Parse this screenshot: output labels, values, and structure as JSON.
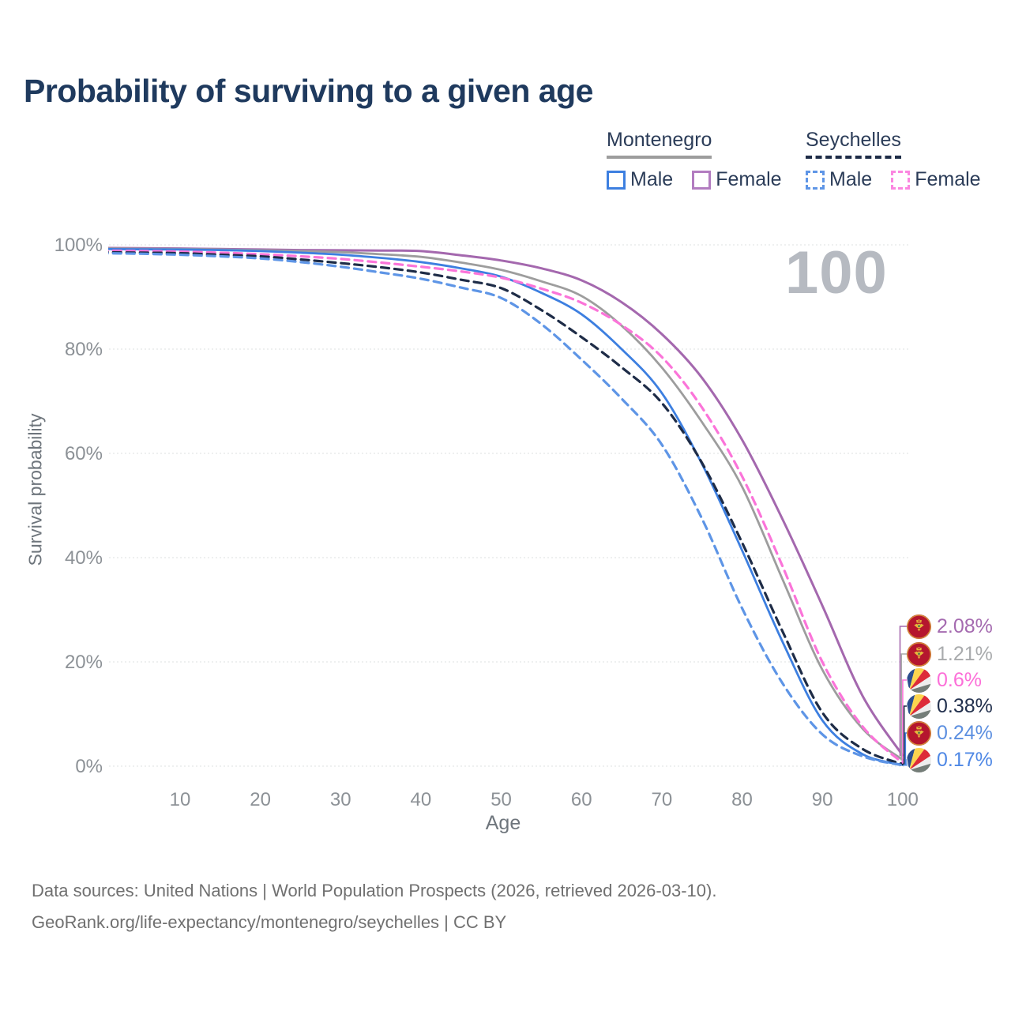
{
  "title": "Probability of surviving to a given age",
  "watermark_age": "100",
  "legend": {
    "groups": [
      {
        "name": "Montenegro",
        "line_style": "solid",
        "underline_color": "#9d9d9d"
      },
      {
        "name": "Seychelles",
        "line_style": "dashed",
        "underline_color": "#1e2c47"
      }
    ],
    "items": [
      {
        "label": "Male",
        "color": "#3d7fe0",
        "dashed": false
      },
      {
        "label": "Female",
        "color": "#b27cc0",
        "dashed": false
      },
      {
        "label": "Male",
        "color": "#5e95e6",
        "dashed": true
      },
      {
        "label": "Female",
        "color": "#fb87e0",
        "dashed": true
      }
    ]
  },
  "axes": {
    "xlabel": "Age",
    "ylabel": "Survival probability",
    "x_ticks": [
      10,
      20,
      30,
      40,
      50,
      60,
      70,
      80,
      90,
      100
    ],
    "y_ticks": [
      0,
      20,
      40,
      60,
      80,
      100
    ],
    "y_tick_suffix": "%"
  },
  "chart_data": {
    "type": "line",
    "title": "Probability of surviving to a given age",
    "xlabel": "Age",
    "ylabel": "Survival probability",
    "xlim": [
      0,
      100
    ],
    "ylim": [
      0,
      100
    ],
    "grid": true,
    "legend_position": "top-right",
    "x": [
      0,
      5,
      10,
      15,
      20,
      25,
      30,
      35,
      40,
      45,
      50,
      55,
      60,
      65,
      70,
      75,
      80,
      85,
      90,
      95,
      100
    ],
    "series": [
      {
        "name": "Montenegro Female",
        "country": "Montenegro",
        "sex": "Female",
        "color": "#a468ae",
        "dash": false,
        "width": 3,
        "values": [
          99.4,
          99.35,
          99.3,
          99.2,
          99.1,
          99.0,
          98.95,
          98.9,
          98.8,
          98.0,
          97.0,
          95.5,
          93.2,
          89.0,
          82.9,
          74.5,
          62.6,
          47.5,
          30.8,
          13.5,
          2.08
        ]
      },
      {
        "name": "Montenegro Total",
        "country": "Montenegro",
        "sex": "Both",
        "color": "#9d9d9d",
        "dash": false,
        "width": 2.8,
        "values": [
          99.3,
          99.25,
          99.2,
          99.1,
          98.95,
          98.8,
          98.6,
          98.2,
          97.7,
          96.6,
          95.2,
          93.0,
          90.2,
          84.5,
          76.5,
          66.0,
          53.6,
          36.0,
          18.5,
          7.2,
          1.21
        ]
      },
      {
        "name": "Montenegro Male",
        "country": "Montenegro",
        "sex": "Male",
        "color": "#3d7fe0",
        "dash": false,
        "width": 2.8,
        "values": [
          99.2,
          99.15,
          99.1,
          99.0,
          98.8,
          98.5,
          98.1,
          97.5,
          96.7,
          95.5,
          93.9,
          90.8,
          86.7,
          80.0,
          71.6,
          58.0,
          41.4,
          24.0,
          8.8,
          2.3,
          0.24
        ]
      },
      {
        "name": "Seychelles Female",
        "country": "Seychelles",
        "sex": "Female",
        "color": "#fb74d9",
        "dash": true,
        "width": 3.2,
        "values": [
          98.9,
          98.8,
          98.7,
          98.5,
          98.2,
          97.8,
          97.3,
          96.6,
          95.8,
          94.9,
          93.7,
          91.6,
          88.9,
          84.6,
          78.5,
          68.8,
          55.6,
          38.5,
          20.0,
          7.6,
          0.6
        ]
      },
      {
        "name": "Seychelles Total",
        "country": "Seychelles",
        "sex": "Both",
        "color": "#1e2c47",
        "dash": true,
        "width": 3.2,
        "values": [
          98.6,
          98.5,
          98.4,
          98.1,
          97.8,
          97.2,
          96.5,
          95.7,
          94.7,
          93.3,
          91.7,
          87.5,
          82.3,
          76.5,
          69.7,
          58.2,
          42.9,
          26.0,
          10.3,
          3.3,
          0.38
        ]
      },
      {
        "name": "Seychelles Male",
        "country": "Seychelles",
        "sex": "Male",
        "color": "#5e95e6",
        "dash": true,
        "width": 3.2,
        "values": [
          98.4,
          98.3,
          98.1,
          97.8,
          97.4,
          96.7,
          95.8,
          94.7,
          93.5,
          91.8,
          89.8,
          84.8,
          78.0,
          70.5,
          61.7,
          47.5,
          30.3,
          16.0,
          6.1,
          1.9,
          0.17
        ]
      }
    ]
  },
  "end_labels": [
    {
      "value": "2.08%",
      "pct": 2.08,
      "color": "#a56bb0",
      "flag": "Montenegro",
      "flag_ref": "#flag-montenegro"
    },
    {
      "value": "1.21%",
      "pct": 1.21,
      "color": "#a9abad",
      "flag": "Montenegro",
      "flag_ref": "#flag-montenegro"
    },
    {
      "value": "0.6%",
      "pct": 0.6,
      "color": "#fc6fd8",
      "flag": "Seychelles",
      "flag_ref": "#flag-seychelles"
    },
    {
      "value": "0.38%",
      "pct": 0.38,
      "color": "#22304d",
      "flag": "Seychelles",
      "flag_ref": "#flag-seychelles"
    },
    {
      "value": "0.24%",
      "pct": 0.24,
      "color": "#5c8fe0",
      "flag": "Montenegro",
      "flag_ref": "#flag-montenegro"
    },
    {
      "value": "0.17%",
      "pct": 0.17,
      "color": "#4f88e5",
      "flag": "Seychelles",
      "flag_ref": "#flag-seychelles"
    }
  ],
  "footer": {
    "line1": "Data sources: United Nations | World Population Prospects (2026, retrieved 2026-03-10).",
    "line2": "GeoRank.org/life-expectancy/montenegro/seychelles | CC BY"
  }
}
